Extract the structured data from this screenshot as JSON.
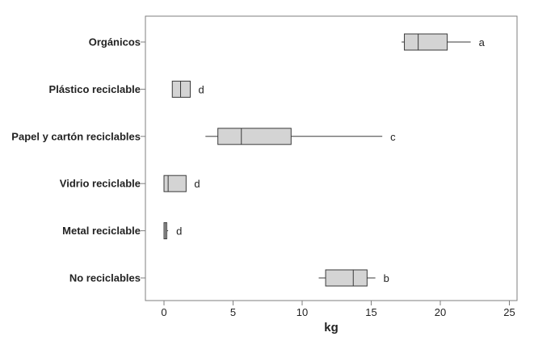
{
  "chart_data": {
    "type": "boxplot",
    "xlabel": "kg",
    "xlim": [
      -1,
      25
    ],
    "xticks": [
      0,
      5,
      10,
      15,
      20,
      25
    ],
    "grid": false,
    "colors": {
      "box_fill": "#d4d4d4",
      "line": "#3a3a3a",
      "frame": "#7f7f7f"
    },
    "categories": [
      {
        "label": "Orgánicos",
        "min": 17.2,
        "q1": 17.4,
        "median": 18.4,
        "q3": 20.5,
        "max": 22.2,
        "group": "a"
      },
      {
        "label": "Plástico reciclable",
        "min": 0.6,
        "q1": 0.6,
        "median": 1.2,
        "q3": 1.9,
        "max": 1.9,
        "group": "d"
      },
      {
        "label": "Papel y cartón reciclables",
        "min": 3.0,
        "q1": 3.9,
        "median": 5.6,
        "q3": 9.2,
        "max": 15.8,
        "group": "c"
      },
      {
        "label": "Vidrio reciclable",
        "min": 0.0,
        "q1": 0.0,
        "median": 0.3,
        "q3": 1.6,
        "max": 1.6,
        "group": "d"
      },
      {
        "label": "Metal reciclable",
        "min": 0.0,
        "q1": 0.0,
        "median": 0.1,
        "q3": 0.2,
        "max": 0.3,
        "group": "d"
      },
      {
        "label": "No reciclables",
        "min": 11.2,
        "q1": 11.7,
        "median": 13.7,
        "q3": 14.7,
        "max": 15.3,
        "group": "b"
      }
    ]
  }
}
